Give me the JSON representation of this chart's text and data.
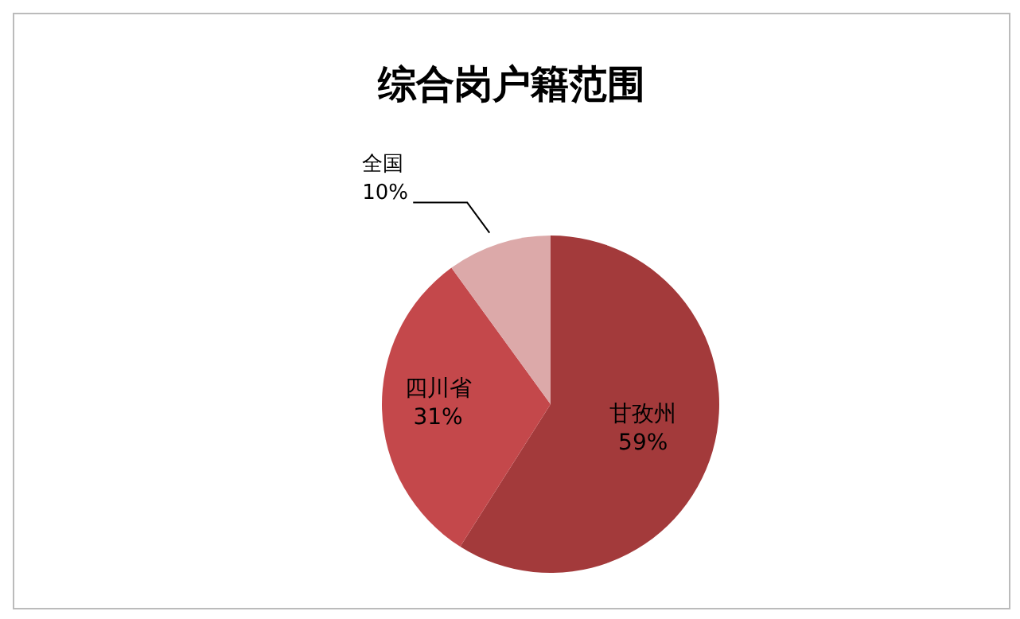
{
  "chart_data": {
    "type": "pie",
    "title": "综合岗户籍范围",
    "categories": [
      "甘孜州",
      "四川省",
      "全国"
    ],
    "values": [
      59,
      31,
      10
    ],
    "colors": [
      "#a33a3b",
      "#c4484b",
      "#dca9a9"
    ],
    "data_labels": true,
    "value_labels": [
      "59%",
      "31%",
      "10%"
    ]
  }
}
